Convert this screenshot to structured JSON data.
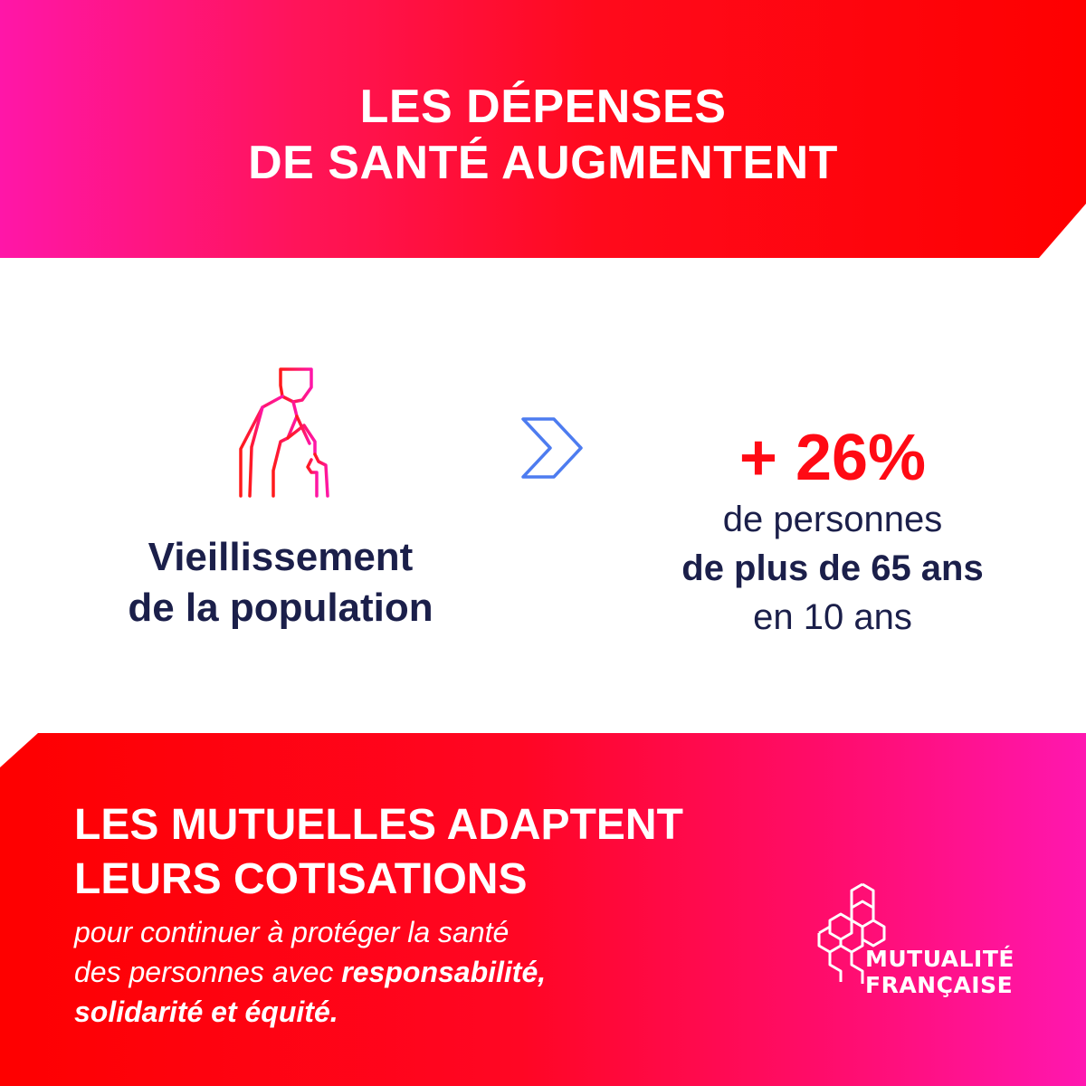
{
  "header": {
    "title_line1": "LES DÉPENSES",
    "title_line2": "DE SANTÉ AUGMENTENT"
  },
  "cause": {
    "icon": "elderly-person-with-cane-icon",
    "label_line1": "Vieillissement",
    "label_line2": "de la population"
  },
  "arrow": {
    "icon": "chevron-right-icon"
  },
  "stat": {
    "value": "+ 26%",
    "line1": "de personnes",
    "line2": "de plus de 65 ans",
    "line3": "en 10 ans"
  },
  "footer": {
    "title_line1": "LES MUTUELLES ADAPTENT",
    "title_line2": "LEURS COTISATIONS",
    "body_line1": "pour continuer à protéger la santé",
    "body_line2_regular": "des personnes avec ",
    "body_line2_bold": "responsabilité,",
    "body_line3_bold": "solidarité et équité."
  },
  "logo": {
    "icon": "honeycomb-logo-icon",
    "line1": "MUTUALITÉ",
    "line2": "FRANÇAISE"
  },
  "colors": {
    "pink": "#ff16a8",
    "red": "#fe0000",
    "navy": "#1b1f4a",
    "stat_red": "#ff0a14",
    "arrow_blue": "#4d7cf0",
    "white": "#ffffff"
  }
}
